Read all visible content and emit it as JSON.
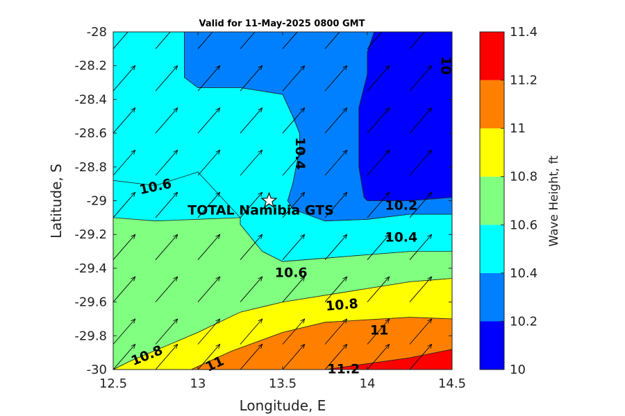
{
  "chart_data": {
    "type": "heatmap",
    "subtype": "filled-contour-with-wind-vectors",
    "title": "Valid for 11-May-2025 0800 GMT",
    "xlabel": "Longitude, E",
    "ylabel": "Latitude, S",
    "xlim": [
      12.5,
      14.5
    ],
    "ylim": [
      -30,
      -28
    ],
    "x_ticks": [
      12.5,
      13,
      13.5,
      14,
      14.5
    ],
    "x_tick_labels": [
      "12.5",
      "13",
      "13.5",
      "14",
      "14.5"
    ],
    "y_ticks": [
      -28,
      -28.2,
      -28.4,
      -28.6,
      -28.8,
      -29,
      -29.2,
      -29.4,
      -29.6,
      -29.8,
      -30
    ],
    "y_tick_labels": [
      "-28",
      "-28.2",
      "-28.4",
      "-28.6",
      "-28.8",
      "-29",
      "-29.2",
      "-29.4",
      "-29.6",
      "-29.8",
      "-30"
    ],
    "colorbar": {
      "label": "Wave Height, ft",
      "levels": [
        10,
        10.2,
        10.4,
        10.6,
        10.8,
        11,
        11.2,
        11.4
      ],
      "tick_labels": [
        "10",
        "10.2",
        "10.4",
        "10.6",
        "10.8",
        "11",
        "11.2",
        "11.4"
      ],
      "colors": [
        "#0000ff",
        "#0080ff",
        "#00ffff",
        "#80ff80",
        "#ffff00",
        "#ff8000",
        "#ff0000"
      ]
    },
    "bands": [
      {
        "range": [
          11.2,
          11.4
        ],
        "polygon": [
          [
            13.75,
            -30
          ],
          [
            14.25,
            -29.93
          ],
          [
            14.5,
            -29.88
          ],
          [
            14.5,
            -30
          ]
        ]
      },
      {
        "range": [
          11.0,
          11.2
        ],
        "polygon": [
          [
            12.96,
            -30
          ],
          [
            13.2,
            -29.89
          ],
          [
            13.5,
            -29.78
          ],
          [
            13.75,
            -29.72
          ],
          [
            14.25,
            -29.69
          ],
          [
            14.5,
            -29.7
          ],
          [
            14.5,
            -29.88
          ],
          [
            14.25,
            -29.93
          ],
          [
            13.75,
            -30
          ]
        ]
      },
      {
        "range": [
          10.8,
          11.0
        ],
        "polygon": [
          [
            12.5,
            -30
          ],
          [
            12.6,
            -29.95
          ],
          [
            13,
            -29.78
          ],
          [
            13.25,
            -29.66
          ],
          [
            13.5,
            -29.6
          ],
          [
            14,
            -29.52
          ],
          [
            14.25,
            -29.48
          ],
          [
            14.5,
            -29.46
          ],
          [
            14.5,
            -29.7
          ],
          [
            14.25,
            -29.69
          ],
          [
            13.75,
            -29.72
          ],
          [
            13.5,
            -29.78
          ],
          [
            13.2,
            -29.89
          ],
          [
            12.96,
            -30
          ]
        ]
      },
      {
        "range": [
          10.6,
          10.8
        ],
        "polygon": [
          [
            12.5,
            -29.1
          ],
          [
            12.75,
            -29.12
          ],
          [
            13,
            -29.11
          ],
          [
            13.25,
            -29.1
          ],
          [
            13.25,
            -29.14
          ],
          [
            13.38,
            -29.3
          ],
          [
            13.5,
            -29.36
          ],
          [
            13.75,
            -29.34
          ],
          [
            14,
            -29.32
          ],
          [
            14.25,
            -29.3
          ],
          [
            14.5,
            -29.3
          ],
          [
            14.5,
            -29.46
          ],
          [
            14.25,
            -29.48
          ],
          [
            14,
            -29.52
          ],
          [
            13.5,
            -29.6
          ],
          [
            13.25,
            -29.66
          ],
          [
            13,
            -29.78
          ],
          [
            12.6,
            -29.95
          ],
          [
            12.5,
            -30
          ]
        ]
      },
      {
        "range": [
          10.4,
          10.6
        ],
        "polygon": [
          [
            12.5,
            -28
          ],
          [
            12.92,
            -28
          ],
          [
            12.92,
            -28.27
          ],
          [
            13,
            -28.33
          ],
          [
            13.25,
            -28.33
          ],
          [
            13.5,
            -28.37
          ],
          [
            13.56,
            -28.5
          ],
          [
            13.6,
            -28.6
          ],
          [
            13.6,
            -28.7
          ],
          [
            13.58,
            -28.8
          ],
          [
            13.56,
            -28.9
          ],
          [
            13.53,
            -29
          ],
          [
            13.56,
            -29.05
          ],
          [
            13.75,
            -29.12
          ],
          [
            14,
            -29.11
          ],
          [
            14.25,
            -29.08
          ],
          [
            14.5,
            -29.08
          ],
          [
            14.5,
            -29.3
          ],
          [
            14.25,
            -29.3
          ],
          [
            14,
            -29.32
          ],
          [
            13.75,
            -29.34
          ],
          [
            13.5,
            -29.36
          ],
          [
            13.38,
            -29.3
          ],
          [
            13.25,
            -29.14
          ],
          [
            13.25,
            -29.1
          ],
          [
            13,
            -28.83
          ],
          [
            12.75,
            -28.91
          ],
          [
            12.5,
            -28.88
          ]
        ]
      },
      {
        "range": [
          10.2,
          10.4
        ],
        "polygon": [
          [
            12.92,
            -28
          ],
          [
            14.04,
            -28
          ],
          [
            14,
            -28.12
          ],
          [
            14,
            -28.25
          ],
          [
            13.95,
            -28.45
          ],
          [
            13.95,
            -28.7
          ],
          [
            13.95,
            -28.8
          ],
          [
            13.98,
            -28.98
          ],
          [
            14,
            -29
          ],
          [
            14.25,
            -29
          ],
          [
            14.5,
            -28.98
          ],
          [
            14.5,
            -29.08
          ],
          [
            14.25,
            -29.08
          ],
          [
            14,
            -29.11
          ],
          [
            13.75,
            -29.12
          ],
          [
            13.56,
            -29.05
          ],
          [
            13.53,
            -29
          ],
          [
            13.56,
            -28.9
          ],
          [
            13.58,
            -28.8
          ],
          [
            13.6,
            -28.7
          ],
          [
            13.6,
            -28.6
          ],
          [
            13.56,
            -28.5
          ],
          [
            13.5,
            -28.37
          ],
          [
            13.25,
            -28.33
          ],
          [
            13,
            -28.33
          ],
          [
            12.92,
            -28.27
          ]
        ]
      },
      {
        "range": [
          10.0,
          10.2
        ],
        "polygon": [
          [
            14.04,
            -28
          ],
          [
            14.5,
            -28
          ],
          [
            14.5,
            -28.98
          ],
          [
            14.25,
            -29
          ],
          [
            14,
            -29
          ],
          [
            13.98,
            -28.98
          ],
          [
            13.95,
            -28.8
          ],
          [
            13.95,
            -28.7
          ],
          [
            13.95,
            -28.45
          ],
          [
            14,
            -28.25
          ],
          [
            14,
            -28.12
          ]
        ]
      }
    ],
    "contour_labels": [
      {
        "text": "10",
        "lon": 14.46,
        "lat": -28.2,
        "rotate": 92
      },
      {
        "text": "10.4",
        "lon": 13.6,
        "lat": -28.72,
        "rotate": 90
      },
      {
        "text": "10.6",
        "lon": 12.75,
        "lat": -28.92,
        "rotate": -12
      },
      {
        "text": "10.2",
        "lon": 14.2,
        "lat": -29.03,
        "rotate": 0
      },
      {
        "text": "10.4",
        "lon": 14.2,
        "lat": -29.22,
        "rotate": 0
      },
      {
        "text": "10.6",
        "lon": 13.55,
        "lat": -29.43,
        "rotate": 0
      },
      {
        "text": "10.8",
        "lon": 13.85,
        "lat": -29.62,
        "rotate": -5
      },
      {
        "text": "11",
        "lon": 14.07,
        "lat": -29.77,
        "rotate": 0
      },
      {
        "text": "10.8",
        "lon": 12.7,
        "lat": -29.92,
        "rotate": -22
      },
      {
        "text": "11",
        "lon": 13.1,
        "lat": -29.97,
        "rotate": -25
      },
      {
        "text": "11.2",
        "lon": 13.86,
        "lat": -30.0,
        "rotate": 0
      }
    ],
    "wind_vectors": {
      "lon": [
        12.5,
        12.75,
        13,
        13.25,
        13.5,
        13.75,
        14,
        14.25,
        14.5
      ],
      "lat": [
        -28.1,
        -28.35,
        -28.6,
        -28.85,
        -29.1,
        -29.35,
        -29.6,
        -29.85,
        -30.0
      ],
      "direction": "toward north-east",
      "dx_deg": 0.13,
      "dy_deg": 0.15
    },
    "station": {
      "name": "TOTAL Namibia GTS",
      "lon": 13.42,
      "lat": -29.0
    }
  }
}
